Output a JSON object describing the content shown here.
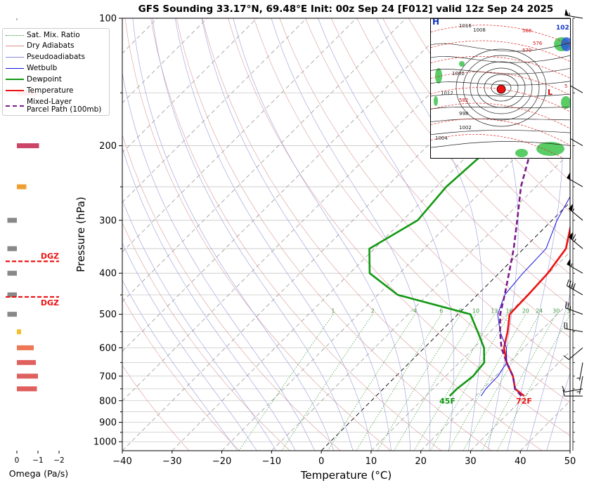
{
  "chart_data": {
    "type": "line",
    "title": "GFS Sounding 33.17°N, 69.48°E Init: 00z Sep 24 [F012] valid 12z Sep 24 2025",
    "xlabel": "Temperature (°C)",
    "ylabel": "Pressure (hPa)",
    "xlim": [
      -40,
      50
    ],
    "ylim": [
      1050,
      100
    ],
    "x_ticks": [
      -40,
      -30,
      -20,
      -10,
      0,
      10,
      20,
      30,
      40,
      50
    ],
    "x_tick_labels": [
      "−40",
      "−30",
      "−20",
      "−10",
      "0",
      "10",
      "20",
      "30",
      "40",
      "50"
    ],
    "pressure_ticks": [
      100,
      200,
      300,
      400,
      500,
      600,
      700,
      800,
      900,
      1000
    ],
    "pressure_minor": [
      150,
      250,
      350,
      450,
      550,
      650,
      750,
      850,
      950
    ],
    "series": [
      {
        "name": "Temperature",
        "color": "#ee1111",
        "points": [
          [
            -13.5,
            100
          ],
          [
            -11,
            150
          ],
          [
            -4.5,
            200
          ],
          [
            -0.5,
            250
          ],
          [
            4,
            300
          ],
          [
            8.5,
            350
          ],
          [
            9.8,
            400
          ],
          [
            10.2,
            450
          ],
          [
            10.4,
            500
          ],
          [
            13.5,
            550
          ],
          [
            16,
            600
          ],
          [
            19.5,
            650
          ],
          [
            23.5,
            700
          ],
          [
            26.5,
            750
          ],
          [
            29.8,
            780
          ]
        ]
      },
      {
        "name": "Dewpoint",
        "color": "#119911",
        "points": [
          [
            -20,
            100
          ],
          [
            -25,
            150
          ],
          [
            -27,
            200
          ],
          [
            -28,
            250
          ],
          [
            -27,
            300
          ],
          [
            -31,
            350
          ],
          [
            -26,
            400
          ],
          [
            -16,
            450
          ],
          [
            2.5,
            500
          ],
          [
            7.5,
            550
          ],
          [
            12,
            600
          ],
          [
            15,
            650
          ],
          [
            15.5,
            700
          ],
          [
            14.8,
            750
          ],
          [
            14.8,
            780
          ]
        ]
      },
      {
        "name": "Wetbulb",
        "color": "#1111dd",
        "points": [
          [
            -13.5,
            100
          ],
          [
            -11,
            150
          ],
          [
            -5.5,
            200
          ],
          [
            -2,
            250
          ],
          [
            1,
            300
          ],
          [
            4.5,
            350
          ],
          [
            4.8,
            400
          ],
          [
            5.5,
            450
          ],
          [
            8,
            500
          ],
          [
            12,
            550
          ],
          [
            16.5,
            600
          ],
          [
            19.5,
            650
          ],
          [
            20.5,
            700
          ],
          [
            20.6,
            750
          ],
          [
            21.1,
            780
          ]
        ]
      },
      {
        "name": "Mixed-Layer Parcel Path (100mb)",
        "color": "#7a1a8a",
        "points": [
          [
            -33,
            100
          ],
          [
            -26,
            150
          ],
          [
            -19,
            200
          ],
          [
            -13,
            250
          ],
          [
            -7,
            300
          ],
          [
            -2,
            350
          ],
          [
            2,
            400
          ],
          [
            5.5,
            450
          ],
          [
            8.5,
            500
          ],
          [
            12,
            550
          ],
          [
            15.5,
            600
          ],
          [
            19.5,
            650
          ],
          [
            23.5,
            700
          ],
          [
            26.5,
            750
          ],
          [
            29.2,
            780
          ]
        ]
      }
    ],
    "surface_labels": [
      {
        "text": "45F",
        "color": "#119911",
        "t": 14.8,
        "p": 800
      },
      {
        "text": "72F",
        "color": "#ee1111",
        "t": 30.2,
        "p": 800
      }
    ],
    "mixing_ratio_labels": [
      "1",
      "2",
      "4",
      "6",
      "8",
      "10",
      "13",
      "16",
      "20",
      "24",
      "30",
      "36"
    ],
    "mixing_ratio_values": [
      1,
      2,
      4,
      6,
      8,
      10,
      13,
      16,
      20,
      24,
      30,
      36
    ],
    "omega": {
      "xlabel": "Omega (Pa/s)",
      "x_ticks": [
        0,
        -1,
        -2
      ],
      "x_tick_labels": [
        "0",
        "−1",
        "−2"
      ],
      "bars": [
        {
          "p": 150,
          "omega": -0.95,
          "color": "#e06060"
        },
        {
          "p": 200,
          "omega": -1.05,
          "color": "#cc4466"
        },
        {
          "p": 250,
          "omega": -0.45,
          "color": "#f0a030"
        },
        {
          "p": 300,
          "omega": 0.45,
          "color": "#888888"
        },
        {
          "p": 350,
          "omega": 0.45,
          "color": "#888888"
        },
        {
          "p": 400,
          "omega": 0.45,
          "color": "#888888"
        },
        {
          "p": 450,
          "omega": 0.45,
          "color": "#888888"
        },
        {
          "p": 500,
          "omega": 0.45,
          "color": "#888888"
        },
        {
          "p": 550,
          "omega": -0.2,
          "color": "#f0c030"
        },
        {
          "p": 600,
          "omega": -0.8,
          "color": "#ee7755"
        },
        {
          "p": 650,
          "omega": -0.9,
          "color": "#e06060"
        },
        {
          "p": 700,
          "omega": -1.0,
          "color": "#e06060"
        },
        {
          "p": 750,
          "omega": -0.95,
          "color": "#e06060"
        }
      ],
      "dgz": [
        {
          "label": "DGZ",
          "p": 375
        },
        {
          "label": "DGZ",
          "p": 455
        }
      ]
    },
    "wind_barbs": [
      {
        "p": 100,
        "dir": 280,
        "speed": 55
      },
      {
        "p": 150,
        "dir": 300,
        "speed": 50
      },
      {
        "p": 200,
        "dir": 300,
        "speed": 50
      },
      {
        "p": 250,
        "dir": 300,
        "speed": 50
      },
      {
        "p": 300,
        "dir": 310,
        "speed": 55
      },
      {
        "p": 350,
        "dir": 310,
        "speed": 65
      },
      {
        "p": 400,
        "dir": 300,
        "speed": 55
      },
      {
        "p": 450,
        "dir": 300,
        "speed": 40
      },
      {
        "p": 500,
        "dir": 290,
        "speed": 25
      },
      {
        "p": 550,
        "dir": 280,
        "speed": 20
      },
      {
        "p": 600,
        "dir": 230,
        "speed": 10
      },
      {
        "p": 650,
        "dir": 190,
        "speed": 5
      },
      {
        "p": 700,
        "dir": 190,
        "speed": 5
      },
      {
        "p": 750,
        "dir": 260,
        "speed": 10
      },
      {
        "p": 780,
        "dir": 270,
        "speed": 10
      }
    ]
  },
  "legend": {
    "items": [
      {
        "label": "Sat. Mix. Ratio",
        "color": "#339933",
        "style": "dotted"
      },
      {
        "label": "Dry Adiabats",
        "color": "#dd8888",
        "style": "solid-thin"
      },
      {
        "label": "Pseudoadiabats",
        "color": "#8888dd",
        "style": "solid-thin"
      },
      {
        "label": "Wetbulb",
        "color": "#1111dd",
        "style": "solid"
      },
      {
        "label": "Dewpoint",
        "color": "#119911",
        "style": "solid-thick"
      },
      {
        "label": "Temperature",
        "color": "#ee1111",
        "style": "solid-thick"
      },
      {
        "label": "Mixed-Layer",
        "label2": "Parcel Path (100mb)",
        "color": "#7a1a8a",
        "style": "dashed"
      }
    ]
  },
  "inset_map": {
    "pressure_labels": [
      "H",
      "102",
      "L",
      "1016",
      "1004",
      "1008",
      "1000",
      "998",
      "1012",
      "1002",
      "570",
      "576",
      "582",
      "588",
      "5"
    ]
  }
}
